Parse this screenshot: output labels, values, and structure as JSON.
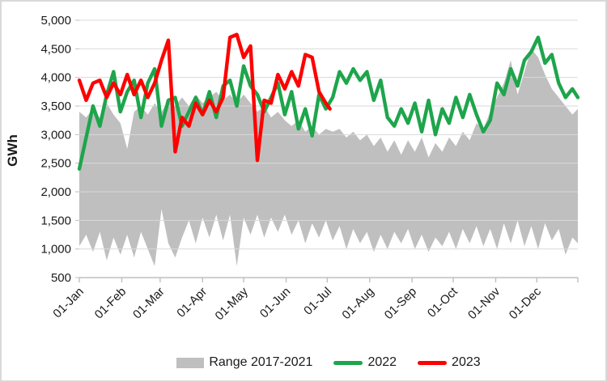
{
  "chart_data": {
    "type": "area+line",
    "title": "",
    "ylabel": "GWh",
    "ylim": [
      500,
      5000
    ],
    "grid": true,
    "legend_position": "bottom",
    "yticks": [
      {
        "v": 5000,
        "label": "5,000"
      },
      {
        "v": 4500,
        "label": "4,500"
      },
      {
        "v": 4000,
        "label": "4,000"
      },
      {
        "v": 3500,
        "label": "3,500"
      },
      {
        "v": 3000,
        "label": "3,000"
      },
      {
        "v": 2500,
        "label": "2,500"
      },
      {
        "v": 2000,
        "label": "2,000"
      },
      {
        "v": 1500,
        "label": "1,500"
      },
      {
        "v": 1000,
        "label": "1,000"
      },
      {
        "v": 500,
        "label": "500"
      }
    ],
    "month_ticks": [
      {
        "day": 1,
        "label": "01-Jan"
      },
      {
        "day": 32,
        "label": "01-Feb"
      },
      {
        "day": 60,
        "label": "01-Mar"
      },
      {
        "day": 91,
        "label": "01-Apr"
      },
      {
        "day": 121,
        "label": "01-May"
      },
      {
        "day": 152,
        "label": "01-Jun"
      },
      {
        "day": 182,
        "label": "01-Jul"
      },
      {
        "day": 213,
        "label": "01-Aug"
      },
      {
        "day": 244,
        "label": "01-Sep"
      },
      {
        "day": 274,
        "label": "01-Oct"
      },
      {
        "day": 305,
        "label": "01-Nov"
      },
      {
        "day": 335,
        "label": "01-Dec"
      }
    ],
    "axis_end_day": 365,
    "colors": {
      "range": "#bfbfbf",
      "y2022": "#1ea54c",
      "y2023": "#ff0000",
      "grid": "#d9d9d9",
      "axis": "#bfbfbf",
      "text": "#1a1a1a"
    },
    "legend": [
      {
        "label": "Range 2017-2021",
        "type": "area",
        "color": "#bfbfbf"
      },
      {
        "label": "2022",
        "type": "line",
        "color": "#1ea54c"
      },
      {
        "label": "2023",
        "type": "line",
        "color": "#ff0000"
      }
    ],
    "series_days": [
      1,
      6,
      11,
      16,
      21,
      26,
      31,
      36,
      41,
      46,
      51,
      56,
      61,
      66,
      71,
      76,
      81,
      86,
      91,
      96,
      101,
      106,
      111,
      116,
      121,
      126,
      131,
      136,
      141,
      146,
      151,
      156,
      161,
      166,
      171,
      176,
      181,
      186,
      191,
      196,
      201,
      206,
      211,
      216,
      221,
      226,
      231,
      236,
      241,
      246,
      251,
      256,
      261,
      266,
      271,
      276,
      281,
      286,
      291,
      296,
      301,
      306,
      311,
      316,
      321,
      326,
      331,
      336,
      341,
      346,
      351,
      356,
      361,
      365
    ],
    "series": [
      {
        "name": "Range 2017-2021 max",
        "role": "band_max",
        "values": [
          3400,
          3300,
          3450,
          3300,
          3550,
          3350,
          3200,
          2750,
          3400,
          3500,
          3350,
          3550,
          3400,
          3600,
          3500,
          3650,
          3500,
          3700,
          3550,
          3650,
          3750,
          3600,
          3700,
          3550,
          3700,
          3550,
          3400,
          3500,
          3300,
          3400,
          3250,
          3150,
          3250,
          3050,
          3150,
          3000,
          3100,
          3050,
          3100,
          2950,
          3050,
          2900,
          3000,
          2800,
          2950,
          2700,
          2900,
          2650,
          2900,
          2700,
          2950,
          2600,
          2850,
          2700,
          2950,
          2800,
          3050,
          2900,
          3200,
          3100,
          3400,
          3650,
          3900,
          4300,
          3700,
          4100,
          4500,
          4350,
          4050,
          3800,
          3650,
          3500,
          3350,
          3450
        ]
      },
      {
        "name": "Range 2017-2021 min",
        "role": "band_min",
        "values": [
          1050,
          1250,
          950,
          1300,
          800,
          1200,
          900,
          1250,
          850,
          1300,
          1000,
          700,
          1700,
          1100,
          850,
          1200,
          1500,
          1100,
          1550,
          1200,
          1600,
          1150,
          1600,
          700,
          1550,
          1250,
          1600,
          1200,
          1550,
          1300,
          1600,
          1250,
          1500,
          1100,
          1450,
          1200,
          1500,
          1150,
          1400,
          1000,
          1350,
          1100,
          1300,
          950,
          1250,
          1000,
          1300,
          1100,
          1350,
          1000,
          1250,
          950,
          1200,
          1050,
          1300,
          1000,
          1350,
          1100,
          1400,
          1050,
          1350,
          1000,
          1450,
          1100,
          1500,
          1050,
          1400,
          1000,
          1450,
          1150,
          1350,
          900,
          1200,
          1100
        ]
      },
      {
        "name": "2022",
        "role": "line",
        "color": "#1ea54c",
        "values": [
          2400,
          2950,
          3500,
          3150,
          3700,
          4100,
          3400,
          3750,
          3950,
          3300,
          3900,
          4150,
          3150,
          3600,
          3650,
          3150,
          3400,
          3650,
          3350,
          3750,
          3300,
          3850,
          3950,
          3500,
          4200,
          3850,
          3700,
          3400,
          3650,
          3900,
          3350,
          3750,
          3100,
          3450,
          2980,
          3700,
          3450,
          3650,
          4100,
          3900,
          4150,
          3950,
          4100,
          3600,
          3950,
          3300,
          3150,
          3450,
          3200,
          3550,
          3050,
          3600,
          3000,
          3450,
          3200,
          3650,
          3300,
          3700,
          3350,
          3050,
          3250,
          3900,
          3700,
          4150,
          3850,
          4300,
          4450,
          4700,
          4250,
          4400,
          3900,
          3650,
          3800,
          3650
        ]
      },
      {
        "name": "2023",
        "role": "line",
        "color": "#ff0000",
        "days": [
          1,
          6,
          11,
          16,
          21,
          26,
          31,
          36,
          41,
          46,
          51,
          56,
          61,
          66,
          71,
          76,
          81,
          86,
          91,
          96,
          101,
          106,
          111,
          116,
          121,
          126,
          131,
          136,
          141,
          146,
          151,
          156,
          161,
          166,
          171,
          176,
          181,
          184
        ],
        "values": [
          3950,
          3600,
          3900,
          3950,
          3650,
          3900,
          3700,
          4050,
          3700,
          3950,
          3650,
          3900,
          4300,
          4650,
          2700,
          3300,
          3150,
          3550,
          3350,
          3600,
          3400,
          3650,
          4700,
          4750,
          4350,
          4550,
          2550,
          3600,
          3550,
          4050,
          3800,
          4100,
          3850,
          4400,
          4350,
          3750,
          3550,
          3450
        ]
      }
    ]
  }
}
